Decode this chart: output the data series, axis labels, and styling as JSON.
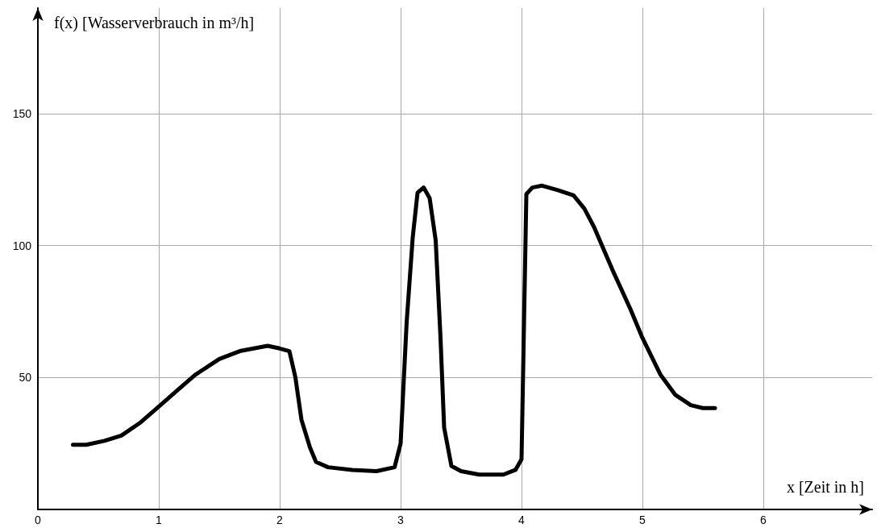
{
  "chart_data": {
    "type": "line",
    "xlabel": "x [Zeit in h]",
    "ylabel": "f(x) [Wasserverbrauch in m³/h]",
    "xlim": [
      0,
      6.9
    ],
    "ylim": [
      0,
      190
    ],
    "xticks": [
      0,
      1,
      2,
      3,
      4,
      5,
      6
    ],
    "yticks": [
      50,
      100,
      150
    ],
    "grid": true,
    "marker": "none",
    "line_style": "solid",
    "series": [
      {
        "color": "#000000",
        "x": [
          0.29,
          0.4,
          0.55,
          0.69,
          0.85,
          1.0,
          1.15,
          1.3,
          1.5,
          1.67,
          1.9,
          2.0,
          2.08,
          2.13,
          2.18,
          2.25,
          2.3,
          2.4,
          2.6,
          2.8,
          2.95,
          3.0,
          3.05,
          3.1,
          3.14,
          3.19,
          3.24,
          3.29,
          3.33,
          3.36,
          3.42,
          3.5,
          3.65,
          3.85,
          3.95,
          4.0,
          4.04,
          4.09,
          4.17,
          4.3,
          4.43,
          4.52,
          4.6,
          4.75,
          4.9,
          5.0,
          5.15,
          5.27,
          5.4,
          5.5,
          5.6
        ],
        "values": [
          24.5,
          24.5,
          26,
          28,
          33,
          39,
          45,
          51,
          57,
          60,
          62,
          61,
          60,
          50,
          34,
          23.5,
          18,
          16,
          15,
          14.5,
          16,
          25,
          71,
          103,
          120,
          122,
          118,
          102,
          65,
          31,
          16.5,
          14.5,
          13.2,
          13.2,
          15,
          19,
          119.5,
          122,
          122.7,
          121,
          119,
          114,
          107,
          91,
          76,
          65,
          51,
          43.5,
          39.5,
          38.4,
          38.4
        ]
      }
    ]
  }
}
